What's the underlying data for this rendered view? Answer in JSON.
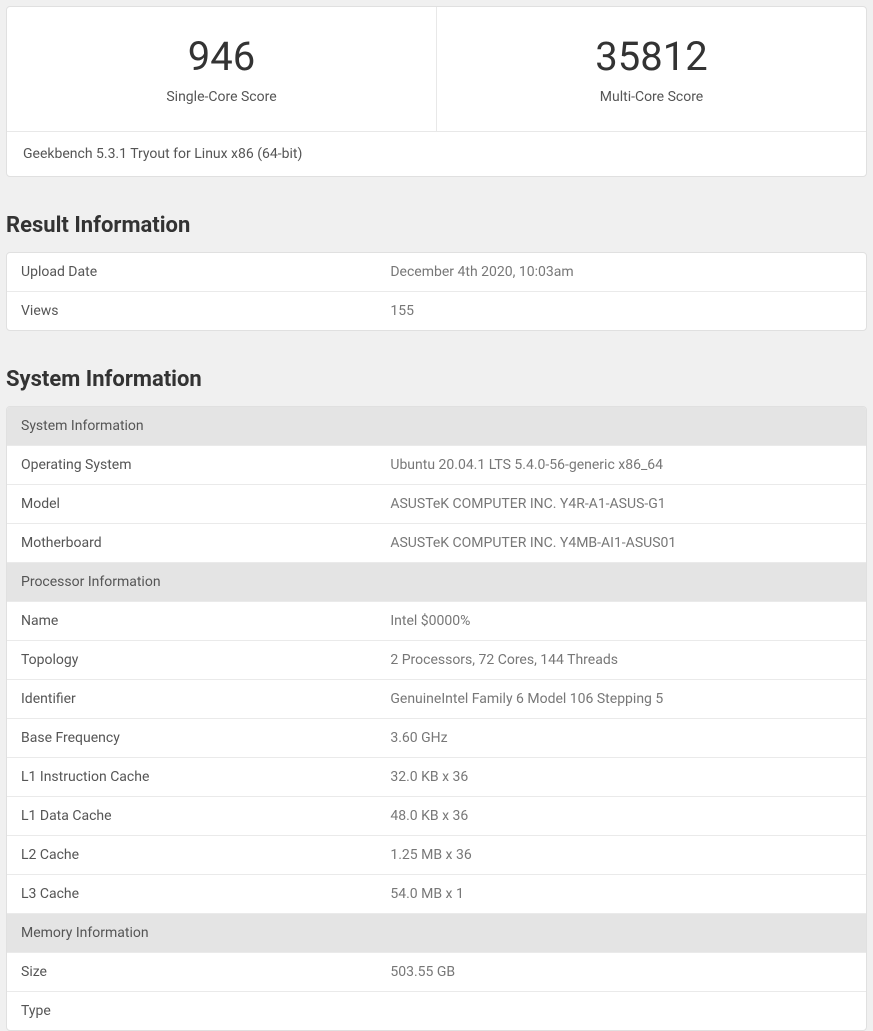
{
  "scores": {
    "single_core": {
      "value": "946",
      "label": "Single-Core Score"
    },
    "multi_core": {
      "value": "35812",
      "label": "Multi-Core Score"
    }
  },
  "version_line": "Geekbench 5.3.1 Tryout for Linux x86 (64-bit)",
  "result_info": {
    "heading": "Result Information",
    "rows": [
      {
        "key": "Upload Date",
        "val": "December 4th 2020, 10:03am"
      },
      {
        "key": "Views",
        "val": "155"
      }
    ]
  },
  "system_info": {
    "heading": "System Information",
    "sections": [
      {
        "title": "System Information",
        "rows": [
          {
            "key": "Operating System",
            "val": "Ubuntu 20.04.1 LTS 5.4.0-56-generic x86_64"
          },
          {
            "key": "Model",
            "val": "ASUSTeK COMPUTER INC. Y4R-A1-ASUS-G1"
          },
          {
            "key": "Motherboard",
            "val": "ASUSTeK COMPUTER INC. Y4MB-AI1-ASUS01"
          }
        ]
      },
      {
        "title": "Processor Information",
        "rows": [
          {
            "key": "Name",
            "val": "Intel $0000%"
          },
          {
            "key": "Topology",
            "val": "2 Processors, 72 Cores, 144 Threads"
          },
          {
            "key": "Identifier",
            "val": "GenuineIntel Family 6 Model 106 Stepping 5"
          },
          {
            "key": "Base Frequency",
            "val": "3.60 GHz"
          },
          {
            "key": "L1 Instruction Cache",
            "val": "32.0 KB x 36"
          },
          {
            "key": "L1 Data Cache",
            "val": "48.0 KB x 36"
          },
          {
            "key": "L2 Cache",
            "val": "1.25 MB x 36"
          },
          {
            "key": "L3 Cache",
            "val": "54.0 MB x 1"
          }
        ]
      },
      {
        "title": "Memory Information",
        "rows": [
          {
            "key": "Size",
            "val": "503.55 GB"
          },
          {
            "key": "Type",
            "val": ""
          }
        ]
      }
    ]
  },
  "colors": {
    "page_bg": "#f0f0f0",
    "card_bg": "#ffffff",
    "border": "#e0e0e0",
    "row_border": "#eaeaea",
    "subhead_bg": "#e4e4e4",
    "text_primary": "#333333",
    "text_secondary": "#555555",
    "text_muted": "#777777"
  }
}
